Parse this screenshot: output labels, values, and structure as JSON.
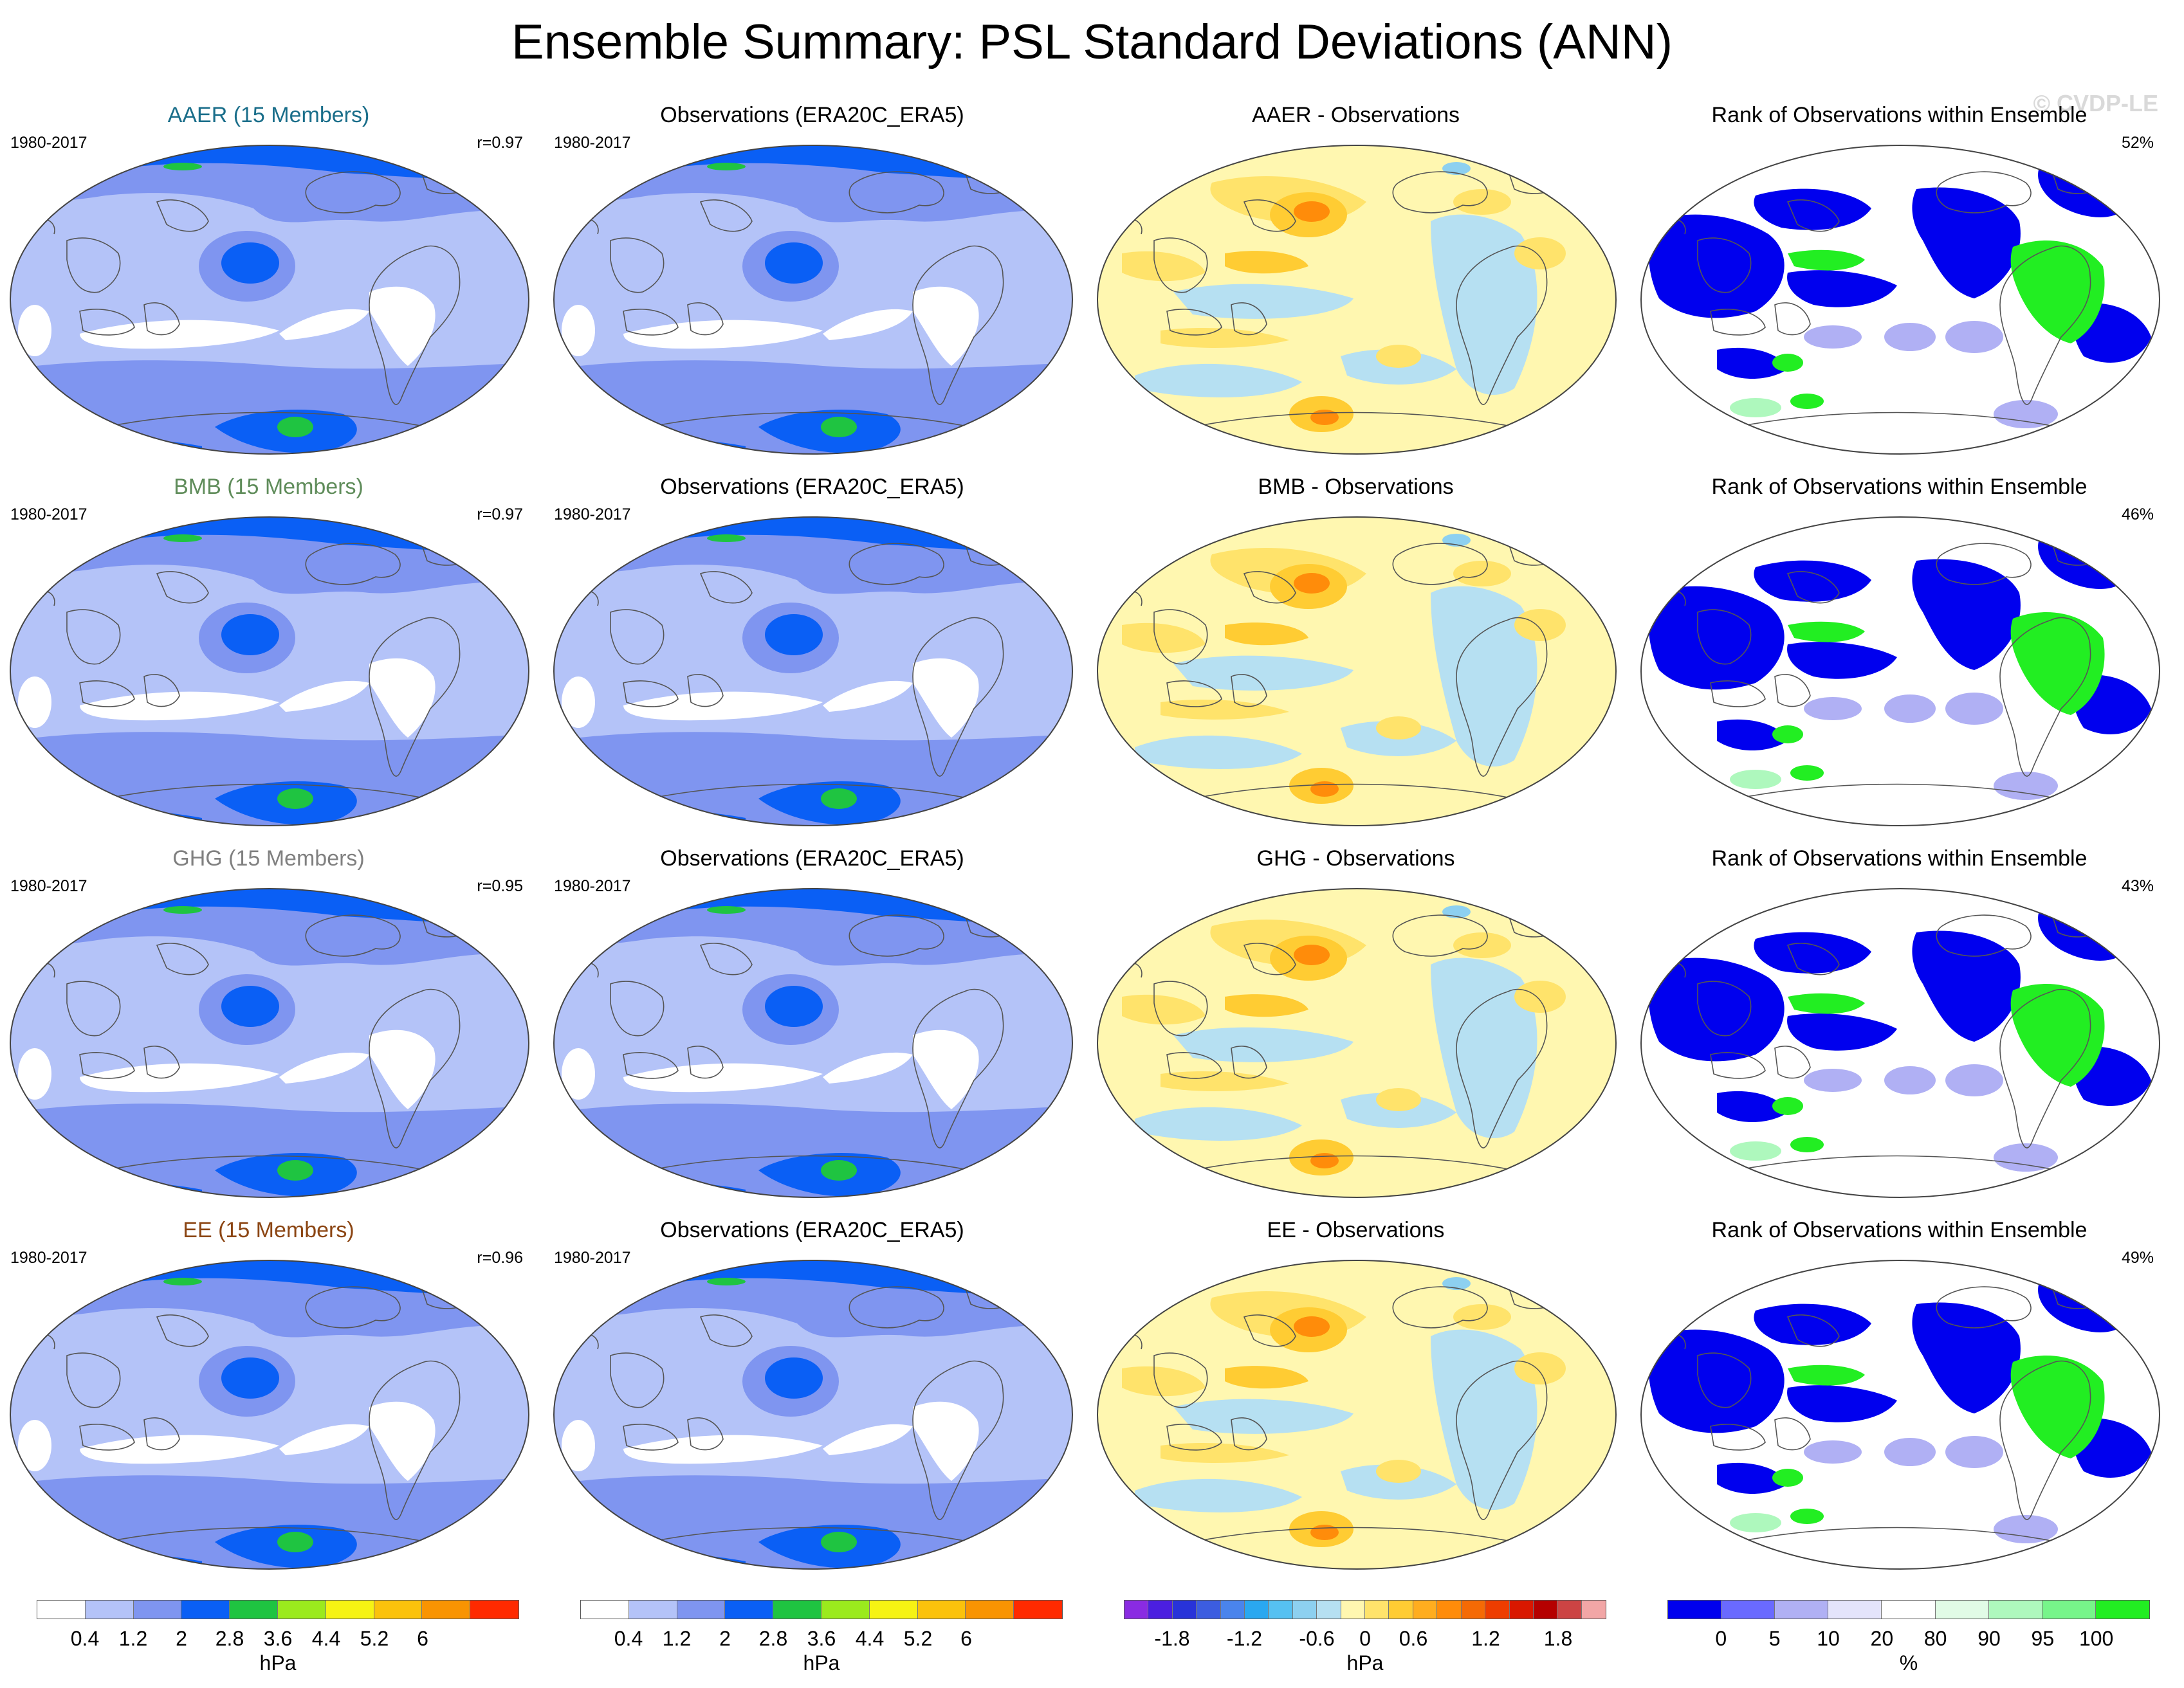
{
  "title": "Ensemble Summary: PSL Standard Deviations (ANN)",
  "watermark": "© CVDP-LE",
  "rows": [
    {
      "model": "AAER (15 Members)",
      "model_color": "#1a6e8a",
      "years": "1980-2017",
      "r": "r=0.97",
      "obs_title": "Observations (ERA20C_ERA5)",
      "obs_years": "1980-2017",
      "diff_title": "AAER - Observations",
      "rank_title": "Rank of Observations within Ensemble",
      "rank_pct": "52%"
    },
    {
      "model": "BMB (15 Members)",
      "model_color": "#5f8c5a",
      "years": "1980-2017",
      "r": "r=0.97",
      "obs_title": "Observations (ERA20C_ERA5)",
      "obs_years": "1980-2017",
      "diff_title": "BMB - Observations",
      "rank_title": "Rank of Observations within Ensemble",
      "rank_pct": "46%"
    },
    {
      "model": "GHG (15 Members)",
      "model_color": "#808080",
      "years": "1980-2017",
      "r": "r=0.95",
      "obs_title": "Observations (ERA20C_ERA5)",
      "obs_years": "1980-2017",
      "diff_title": "GHG - Observations",
      "rank_title": "Rank of Observations within Ensemble",
      "rank_pct": "43%"
    },
    {
      "model": "EE (15 Members)",
      "model_color": "#8b4513",
      "years": "1980-2017",
      "r": "r=0.96",
      "obs_title": "Observations (ERA20C_ERA5)",
      "obs_years": "1980-2017",
      "diff_title": "EE - Observations",
      "rank_title": "Rank of Observations within Ensemble",
      "rank_pct": "49%"
    }
  ],
  "colorbars": {
    "stddev": {
      "colors": [
        "#ffffff",
        "#b4c3f8",
        "#7f95f0",
        "#0a5ff5",
        "#1fc441",
        "#9bea1d",
        "#f6f313",
        "#fbc20c",
        "#f99402",
        "#ff2a00"
      ],
      "labels": [
        "0.4",
        "1.2",
        "2",
        "2.8",
        "3.6",
        "4.4",
        "5.2",
        "6"
      ],
      "unit": "hPa"
    },
    "diff": {
      "colors": [
        "#8a2be2",
        "#4b1fe0",
        "#2833d9",
        "#3c5de0",
        "#4a84ec",
        "#2aa8f0",
        "#56c1f2",
        "#8dd0f0",
        "#b6e0f2",
        "#fff7b0",
        "#ffe36b",
        "#ffcc33",
        "#ffad1f",
        "#ff8c0a",
        "#f56a05",
        "#ee3d00",
        "#d91800",
        "#b50000",
        "#cc4444",
        "#f2a6a6"
      ],
      "labels": [
        "-1.8",
        "-1.2",
        "-0.6",
        "0",
        "0.6",
        "1.2",
        "1.8"
      ],
      "unit": "hPa"
    },
    "rank": {
      "colors": [
        "#0000ee",
        "#6a6aff",
        "#b0b0f4",
        "#e4e4fb",
        "#ffffff",
        "#e1fbe6",
        "#aef8bd",
        "#77f58a",
        "#22ee22"
      ],
      "labels": [
        "0",
        "5",
        "10",
        "20",
        "80",
        "90",
        "95",
        "100"
      ],
      "unit": "%"
    }
  }
}
